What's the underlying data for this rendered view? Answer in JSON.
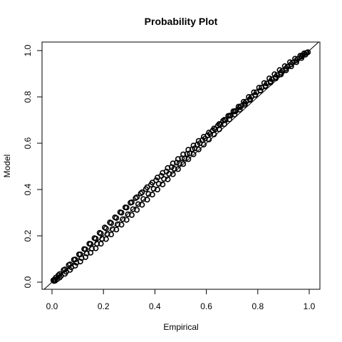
{
  "chart_data": {
    "type": "scatter",
    "title": "Probability Plot",
    "xlabel": "Empirical",
    "ylabel": "Model",
    "xlim": [
      0,
      1
    ],
    "ylim": [
      0,
      1
    ],
    "x_ticks": [
      "0.0",
      "0.2",
      "0.4",
      "0.6",
      "0.8",
      "1.0"
    ],
    "y_ticks": [
      "0.0",
      "0.2",
      "0.4",
      "0.6",
      "0.8",
      "1.0"
    ],
    "grid": false,
    "reference_line": {
      "slope": 1,
      "intercept": 0
    },
    "series": [
      {
        "marker_color": "#000000",
        "x": [
          0.005,
          0.015,
          0.03,
          0.05,
          0.07,
          0.09,
          0.11,
          0.13,
          0.15,
          0.17,
          0.19,
          0.21,
          0.23,
          0.25,
          0.27,
          0.29,
          0.31,
          0.33,
          0.35,
          0.37,
          0.39,
          0.41,
          0.43,
          0.45,
          0.47,
          0.49,
          0.51,
          0.53,
          0.55,
          0.57,
          0.59,
          0.61,
          0.63,
          0.65,
          0.67,
          0.69,
          0.71,
          0.73,
          0.75,
          0.77,
          0.79,
          0.81,
          0.83,
          0.85,
          0.87,
          0.89,
          0.91,
          0.93,
          0.95,
          0.97,
          0.985,
          0.995
        ],
        "y": [
          0.008,
          0.02,
          0.035,
          0.055,
          0.077,
          0.098,
          0.12,
          0.142,
          0.165,
          0.188,
          0.21,
          0.232,
          0.255,
          0.277,
          0.3,
          0.322,
          0.345,
          0.367,
          0.388,
          0.41,
          0.43,
          0.452,
          0.472,
          0.493,
          0.513,
          0.532,
          0.552,
          0.572,
          0.59,
          0.61,
          0.628,
          0.646,
          0.664,
          0.683,
          0.701,
          0.719,
          0.737,
          0.755,
          0.773,
          0.791,
          0.809,
          0.827,
          0.845,
          0.862,
          0.88,
          0.897,
          0.915,
          0.932,
          0.95,
          0.968,
          0.982,
          0.993
        ]
      },
      {
        "marker_color": "#000000",
        "x": [
          0.008,
          0.02,
          0.035,
          0.055,
          0.075,
          0.095,
          0.115,
          0.135,
          0.155,
          0.175,
          0.195,
          0.215,
          0.235,
          0.255,
          0.275,
          0.295,
          0.315,
          0.335,
          0.355,
          0.375,
          0.395,
          0.415,
          0.435,
          0.455,
          0.475,
          0.495,
          0.515,
          0.535,
          0.555,
          0.575,
          0.595,
          0.615,
          0.635,
          0.655,
          0.675,
          0.695,
          0.715,
          0.735,
          0.755,
          0.775,
          0.795,
          0.815,
          0.835,
          0.855,
          0.875,
          0.895,
          0.915,
          0.935,
          0.955,
          0.975,
          0.99
        ],
        "y": [
          0.005,
          0.013,
          0.027,
          0.045,
          0.064,
          0.084,
          0.104,
          0.124,
          0.145,
          0.166,
          0.187,
          0.208,
          0.229,
          0.25,
          0.272,
          0.293,
          0.315,
          0.337,
          0.359,
          0.381,
          0.403,
          0.425,
          0.446,
          0.468,
          0.49,
          0.512,
          0.534,
          0.556,
          0.578,
          0.6,
          0.62,
          0.64,
          0.66,
          0.68,
          0.7,
          0.72,
          0.74,
          0.76,
          0.78,
          0.8,
          0.82,
          0.84,
          0.858,
          0.876,
          0.894,
          0.912,
          0.93,
          0.948,
          0.964,
          0.98,
          0.99
        ]
      },
      {
        "marker_color": "#000000",
        "x": [
          0.01,
          0.025,
          0.045,
          0.065,
          0.085,
          0.105,
          0.125,
          0.145,
          0.165,
          0.185,
          0.205,
          0.225,
          0.245,
          0.265,
          0.285,
          0.305,
          0.325,
          0.345,
          0.365,
          0.385,
          0.405,
          0.425,
          0.445,
          0.465,
          0.485,
          0.505,
          0.525,
          0.545,
          0.565,
          0.585,
          0.605,
          0.625,
          0.645,
          0.665,
          0.685,
          0.705,
          0.725,
          0.745,
          0.765,
          0.785,
          0.805,
          0.825,
          0.845,
          0.865,
          0.885,
          0.905,
          0.925,
          0.945,
          0.965,
          0.98
        ],
        "y": [
          0.012,
          0.03,
          0.052,
          0.074,
          0.097,
          0.12,
          0.143,
          0.166,
          0.19,
          0.213,
          0.236,
          0.258,
          0.28,
          0.302,
          0.323,
          0.343,
          0.363,
          0.383,
          0.402,
          0.421,
          0.44,
          0.459,
          0.478,
          0.497,
          0.516,
          0.535,
          0.554,
          0.574,
          0.594,
          0.614,
          0.634,
          0.655,
          0.676,
          0.697,
          0.718,
          0.738,
          0.758,
          0.779,
          0.8,
          0.82,
          0.84,
          0.86,
          0.88,
          0.898,
          0.916,
          0.933,
          0.95,
          0.965,
          0.978,
          0.988
        ]
      },
      {
        "marker_color": "#000000",
        "x": [
          0.012,
          0.03,
          0.05,
          0.07,
          0.09,
          0.11,
          0.13,
          0.15,
          0.17,
          0.19,
          0.21,
          0.23,
          0.25,
          0.27,
          0.29,
          0.31,
          0.33,
          0.35,
          0.37,
          0.39,
          0.41,
          0.43,
          0.45,
          0.47,
          0.49,
          0.51,
          0.53,
          0.55,
          0.57,
          0.59,
          0.61,
          0.63,
          0.65,
          0.67,
          0.69,
          0.71,
          0.73,
          0.75,
          0.77,
          0.79,
          0.81,
          0.83,
          0.85,
          0.87,
          0.89,
          0.91,
          0.93,
          0.95,
          0.97,
          0.988
        ],
        "y": [
          0.006,
          0.02,
          0.036,
          0.053,
          0.071,
          0.089,
          0.108,
          0.127,
          0.146,
          0.166,
          0.186,
          0.206,
          0.227,
          0.248,
          0.269,
          0.29,
          0.312,
          0.334,
          0.356,
          0.378,
          0.4,
          0.422,
          0.444,
          0.466,
          0.488,
          0.51,
          0.531,
          0.552,
          0.573,
          0.594,
          0.616,
          0.638,
          0.66,
          0.682,
          0.703,
          0.724,
          0.745,
          0.766,
          0.787,
          0.808,
          0.828,
          0.848,
          0.867,
          0.886,
          0.905,
          0.923,
          0.941,
          0.958,
          0.975,
          0.99
        ]
      }
    ]
  }
}
